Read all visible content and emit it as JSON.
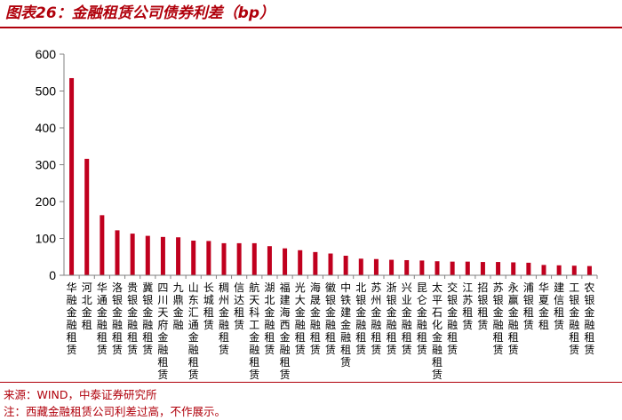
{
  "header": {
    "title": "图表26：金融租赁公司债券利差（bp）"
  },
  "footer": {
    "source": "来源：WIND，中泰证券研究所",
    "note": "注：西藏金融租赁公司利差过高，不作展示。"
  },
  "colors": {
    "accent": "#b0000b",
    "bar": "#c0001e",
    "axis": "#808080",
    "text": "#000000"
  },
  "chart_data": {
    "type": "bar",
    "title": "图表26：金融租赁公司债券利差（bp）",
    "xlabel": "",
    "ylabel": "",
    "ylim": [
      0,
      600
    ],
    "yticks": [
      0,
      100,
      200,
      300,
      400,
      500,
      600
    ],
    "grid": false,
    "categories": [
      "华融金融租赁",
      "河北金租",
      "华通金融租赁",
      "洛银金融租赁",
      "贵银金融租赁",
      "冀银金融租赁",
      "四川天府金融租赁",
      "九鼎金融",
      "山东汇通金融租赁",
      "长城租赁",
      "稠州金融租赁",
      "信达租赁",
      "航天科工金融租赁",
      "湖北金融租赁",
      "福建海西金融租赁",
      "光大金融租赁",
      "海晟金融租赁",
      "徽银金融租赁",
      "中铁建金融租赁",
      "北银金融租赁",
      "苏州金融租赁",
      "浙银金融租赁",
      "兴业金融租赁",
      "昆仑金融租赁",
      "太平石化金融租赁",
      "交银金融租赁",
      "江苏租赁",
      "招银租赁",
      "苏银金融租赁",
      "永赢金融租赁",
      "浦银租赁",
      "华夏金租",
      "建信租赁",
      "工银金融租赁",
      "农银金融租赁"
    ],
    "values": [
      535,
      316,
      163,
      122,
      113,
      107,
      104,
      103,
      94,
      93,
      87,
      87,
      87,
      79,
      73,
      68,
      63,
      59,
      53,
      45,
      44,
      42,
      41,
      40,
      38,
      37,
      37,
      36,
      36,
      35,
      34,
      28,
      27,
      26,
      25
    ]
  }
}
